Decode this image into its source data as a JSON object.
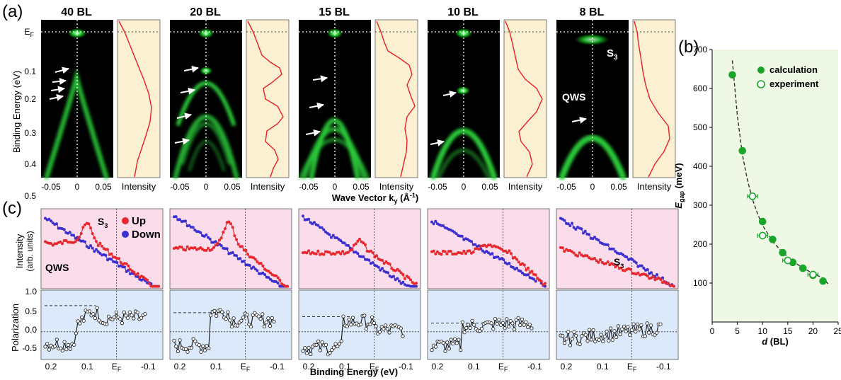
{
  "panel_labels": {
    "a": "(a)",
    "b": "(b)",
    "c": "(c)"
  },
  "arpes": {
    "thickness_labels": [
      "40 BL",
      "20 BL",
      "15 BL",
      "10 BL",
      "8 BL"
    ],
    "y_axis_label": "Binding Energy (eV)",
    "y_ticks": [
      "0.1",
      "0.2",
      "0.3",
      "0.4",
      "0.5"
    ],
    "ef_label": "E",
    "ef_sub": "F",
    "x_ticks": [
      "-0.05",
      "0",
      "0.05"
    ],
    "x_axis_label": "Wave Vector k",
    "x_axis_sub": "y",
    "x_axis_unit": "(Å",
    "x_axis_unit_sup": "-1",
    "x_axis_unit_close": ")",
    "intensity_label": "Intensity",
    "annotation_s3": "S",
    "annotation_s3_sub": "3",
    "annotation_qws": "QWS"
  },
  "spin": {
    "intensity_label": "Intensity",
    "intensity_unit": "(arb. units)",
    "polarization_label": "Polarization",
    "pol_ticks": [
      "1.0",
      "0.5",
      "0.0",
      "-0.5"
    ],
    "x_ticks": [
      "0.2",
      "0.1",
      "E",
      "-0.1"
    ],
    "x_tick_ef_sub": "F",
    "x_axis_label": "Binding Energy (eV)",
    "legend_up": "Up",
    "legend_down": "Down",
    "annotation_s3": "S",
    "annotation_s3_sub": "3",
    "annotation_qws": "QWS",
    "colors": {
      "up": "#e8282d",
      "down": "#3b2fd0",
      "intensity_bg": "#fadcea",
      "polarization_bg": "#dce9fb"
    }
  },
  "chart_data": {
    "type": "scatter",
    "title": "",
    "xlabel": "d (BL)",
    "ylabel": "E",
    "ylabel_sub": "gap",
    "ylabel_unit": "(meV)",
    "xlim": [
      0,
      25
    ],
    "ylim": [
      0,
      700
    ],
    "x_ticks": [
      0,
      5,
      10,
      15,
      20,
      25
    ],
    "y_ticks": [
      100,
      200,
      300,
      400,
      500,
      600,
      700
    ],
    "grid": false,
    "legend": "top-right",
    "background": "#eef8e4",
    "series": [
      {
        "name": "calculation",
        "marker": "filled-circle",
        "color": "#1aa52a",
        "x": [
          4,
          6,
          10,
          12,
          14,
          16,
          18,
          20,
          22
        ],
        "y": [
          635,
          440,
          258,
          212,
          178,
          153,
          138,
          120,
          105
        ]
      },
      {
        "name": "experiment",
        "marker": "open-circle",
        "color": "#1aa52a",
        "x": [
          8,
          10,
          15,
          20
        ],
        "y": [
          323,
          222,
          158,
          122
        ],
        "xerr": [
          1,
          1,
          1,
          1
        ]
      }
    ],
    "fit_curve": {
      "style": "dashed",
      "color": "#222222",
      "x": [
        4,
        5,
        6,
        7,
        8,
        9,
        10,
        12,
        14,
        16,
        18,
        20,
        22,
        23
      ],
      "y": [
        672,
        530,
        430,
        365,
        315,
        278,
        248,
        207,
        178,
        156,
        139,
        125,
        113,
        98
      ]
    }
  }
}
